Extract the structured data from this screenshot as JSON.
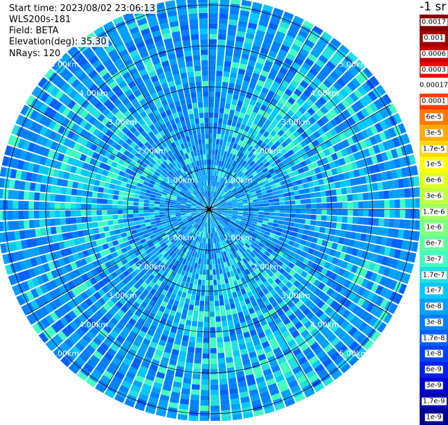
{
  "header": {
    "start_time": "Start time: 2023/08/02 23:06:13",
    "instrument": "WLS200s-181",
    "field": "Field: BETA",
    "elevation": "Elevation(deg): 35.30",
    "nrays": "NRays: 120"
  },
  "colorbar": {
    "title": "-1 sr",
    "labels": [
      "0.0017",
      "0.001",
      "0.0006",
      "0.0003",
      "0.00017",
      "0.0001",
      "6e-5",
      "3e-5",
      "1.7e-5",
      "1e-5",
      "6e-6",
      "3e-6",
      "1.7e-6",
      "1e-6",
      "6e-7",
      "3e-7",
      "1.7e-7",
      "1e-7",
      "6e-8",
      "3e-8",
      "1.7e-8",
      "1e-8",
      "6e-9",
      "3e-9",
      "1.7e-9",
      "1e-9"
    ],
    "colors": [
      "#800000",
      "#a00000",
      "#c80000",
      "#f00000",
      "#ffffff",
      "#ff3c00",
      "#ff7800",
      "#ffaa00",
      "#ffd700",
      "#ffff00",
      "#e0ff20",
      "#c0ff40",
      "#a0ff60",
      "#80ff80",
      "#60ffa0",
      "#40ffc0",
      "#20e0e0",
      "#00c8ff",
      "#00a0ff",
      "#0080ff",
      "#0060ff",
      "#0040ff",
      "#0020f0",
      "#0000d0",
      "#0000b0",
      "#000090"
    ]
  },
  "chart_data": {
    "type": "heatmap",
    "subtype": "polar PPI scan",
    "n_rays": 120,
    "range_rings_km": [
      1.0,
      2.0,
      3.0,
      4.0,
      5.0
    ],
    "ring_labels": [
      "1.00km",
      "2.00km",
      "3.00km",
      "4.00km",
      "5.00km"
    ],
    "spokes_deg": [
      0,
      30,
      60,
      90,
      120,
      150,
      180,
      210,
      240,
      270,
      300,
      330
    ],
    "max_range_km": 5.0,
    "value_range": [
      "1e-9",
      "0.0017"
    ],
    "dominant_values": "1e-7 to 1e-6 (blue to cyan)"
  }
}
